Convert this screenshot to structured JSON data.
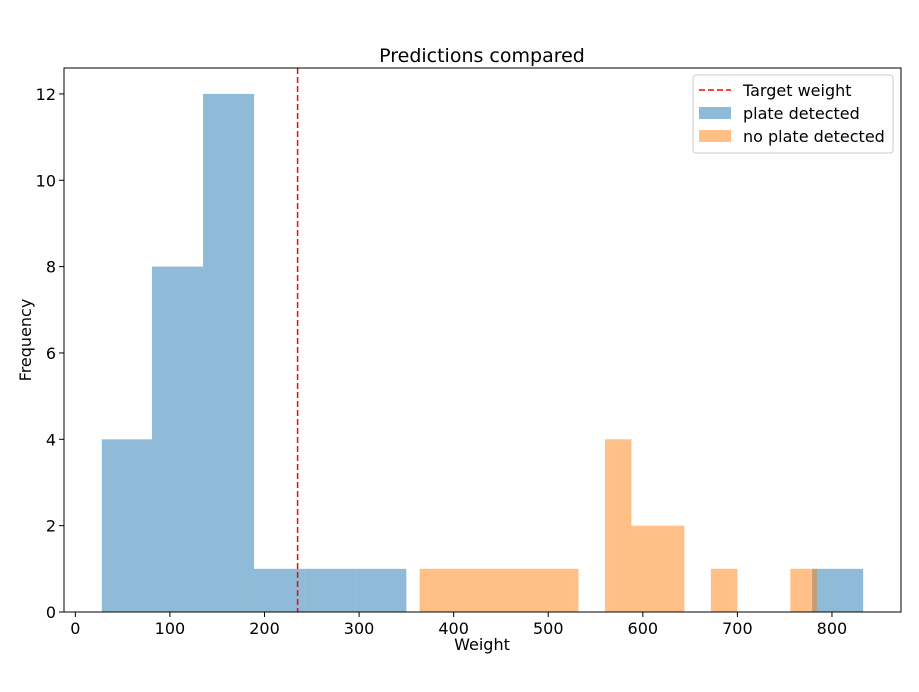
{
  "chart_data": {
    "type": "bar",
    "title": "Predictions compared",
    "xlabel": "Weight",
    "ylabel": "Frequency",
    "xlim": [
      -12,
      873
    ],
    "ylim": [
      0,
      12.6
    ],
    "xticks": [
      0,
      100,
      200,
      300,
      400,
      500,
      600,
      700,
      800
    ],
    "yticks": [
      0,
      2,
      4,
      6,
      8,
      10,
      12
    ],
    "target_weight": 235,
    "legend_position": "top-right",
    "grid": false,
    "series": [
      {
        "name": "plate detected",
        "color": "#1f77b4",
        "alpha": 0.5,
        "bins": [
          {
            "x0": 28,
            "x1": 81,
            "count": 4
          },
          {
            "x0": 81,
            "x1": 135,
            "count": 8
          },
          {
            "x0": 135,
            "x1": 189,
            "count": 12
          },
          {
            "x0": 189,
            "x1": 242,
            "count": 1
          },
          {
            "x0": 242,
            "x1": 296,
            "count": 1
          },
          {
            "x0": 296,
            "x1": 350,
            "count": 1
          },
          {
            "x0": 350,
            "x1": 404,
            "count": 0
          },
          {
            "x0": 404,
            "x1": 457,
            "count": 0
          },
          {
            "x0": 457,
            "x1": 511,
            "count": 0
          },
          {
            "x0": 511,
            "x1": 565,
            "count": 0
          },
          {
            "x0": 565,
            "x1": 618,
            "count": 0
          },
          {
            "x0": 618,
            "x1": 672,
            "count": 0
          },
          {
            "x0": 672,
            "x1": 726,
            "count": 0
          },
          {
            "x0": 726,
            "x1": 779,
            "count": 0
          },
          {
            "x0": 779,
            "x1": 833,
            "count": 1
          }
        ]
      },
      {
        "name": "no plate detected",
        "color": "#ff7f0e",
        "alpha": 0.5,
        "bins": [
          {
            "x0": 364,
            "x1": 392,
            "count": 1
          },
          {
            "x0": 392,
            "x1": 420,
            "count": 1
          },
          {
            "x0": 420,
            "x1": 448,
            "count": 1
          },
          {
            "x0": 448,
            "x1": 476,
            "count": 1
          },
          {
            "x0": 476,
            "x1": 504,
            "count": 1
          },
          {
            "x0": 504,
            "x1": 532,
            "count": 1
          },
          {
            "x0": 532,
            "x1": 560,
            "count": 0
          },
          {
            "x0": 560,
            "x1": 588,
            "count": 4
          },
          {
            "x0": 588,
            "x1": 616,
            "count": 2
          },
          {
            "x0": 616,
            "x1": 644,
            "count": 2
          },
          {
            "x0": 644,
            "x1": 672,
            "count": 0
          },
          {
            "x0": 672,
            "x1": 700,
            "count": 1
          },
          {
            "x0": 700,
            "x1": 728,
            "count": 0
          },
          {
            "x0": 728,
            "x1": 756,
            "count": 0
          },
          {
            "x0": 756,
            "x1": 784,
            "count": 1
          }
        ]
      }
    ],
    "legend": [
      {
        "label": "Target weight",
        "kind": "line",
        "color": "#ff0000",
        "dashed": true
      },
      {
        "label": "plate detected",
        "kind": "patch",
        "color": "#1f77b4",
        "alpha": 0.5
      },
      {
        "label": "no plate detected",
        "kind": "patch",
        "color": "#ff7f0e",
        "alpha": 0.5
      }
    ]
  }
}
